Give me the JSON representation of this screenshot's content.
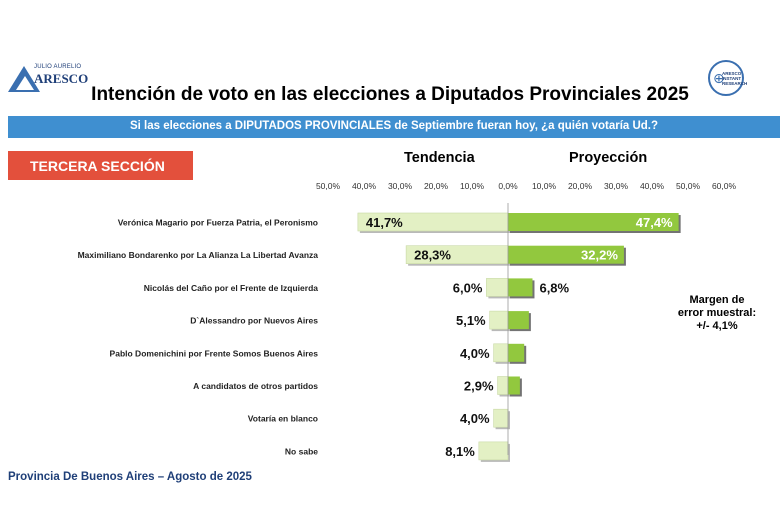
{
  "logos": {
    "left_small": "JULIO AURELIO",
    "left_big": "ARESCO",
    "right_text": "ARESCO INSTANT RESEARCH"
  },
  "title": "Intención de voto en las elecciones a Diputados Provinciales 2025",
  "question": "Si las elecciones a DIPUTADOS PROVINCIALES de Septiembre fueran hoy, ¿a quién votaría Ud.?",
  "section_label": "TERCERA SECCIÓN",
  "footer": "Provincia De Buenos Aires – Agosto de 2025",
  "margin_note": {
    "line1": "Margen de",
    "line2": "error muestral:",
    "line3": "+/- 4,1%"
  },
  "colors": {
    "tendencia_bar": "#e3f0c4",
    "proyeccion_bar": "#92c83e",
    "section_box": "#e3503c",
    "question_bar": "#3f8fd0",
    "footer_text": "#1f3f78"
  },
  "chart_data": {
    "type": "bar",
    "orientation": "horizontal-diverging",
    "title": "Intención de voto en las elecciones a Diputados Provinciales 2025",
    "column_headers": {
      "left": "Tendencia",
      "right": "Proyección"
    },
    "left_ticks": [
      "50,0%",
      "40,0%",
      "30,0%",
      "20,0%",
      "10,0%"
    ],
    "right_ticks": [
      "0,0%",
      "10,0%",
      "20,0%",
      "30,0%",
      "40,0%",
      "50,0%",
      "60,0%"
    ],
    "xlim_left": [
      0,
      50
    ],
    "xlim_right": [
      0,
      60
    ],
    "categories": [
      "Verónica Magario por Fuerza Patria, el Peronismo",
      "Maximiliano Bondarenko por La Alianza La Libertad Avanza",
      "Nicolás del Caño por el Frente de Izquierda",
      "D`Alessandro por Nuevos Aires",
      "Pablo Domenichini por Frente Somos Buenos Aires",
      "A candidatos de otros partidos",
      "Votaría en blanco",
      "No sabe"
    ],
    "series": [
      {
        "name": "Tendencia",
        "values": [
          41.7,
          28.3,
          6.0,
          5.1,
          4.0,
          2.9,
          4.0,
          8.1
        ],
        "labels": [
          "41,7%",
          "28,3%",
          "6,0%",
          "5,1%",
          "4,0%",
          "2,9%",
          "4,0%",
          "8,1%"
        ]
      },
      {
        "name": "Proyección",
        "values": [
          47.4,
          32.2,
          6.8,
          5.8,
          4.5,
          3.3,
          null,
          null
        ],
        "labels": [
          "47,4%",
          "32,2%",
          "6,8%",
          "",
          "",
          "",
          "",
          ""
        ]
      }
    ],
    "grid": false
  }
}
